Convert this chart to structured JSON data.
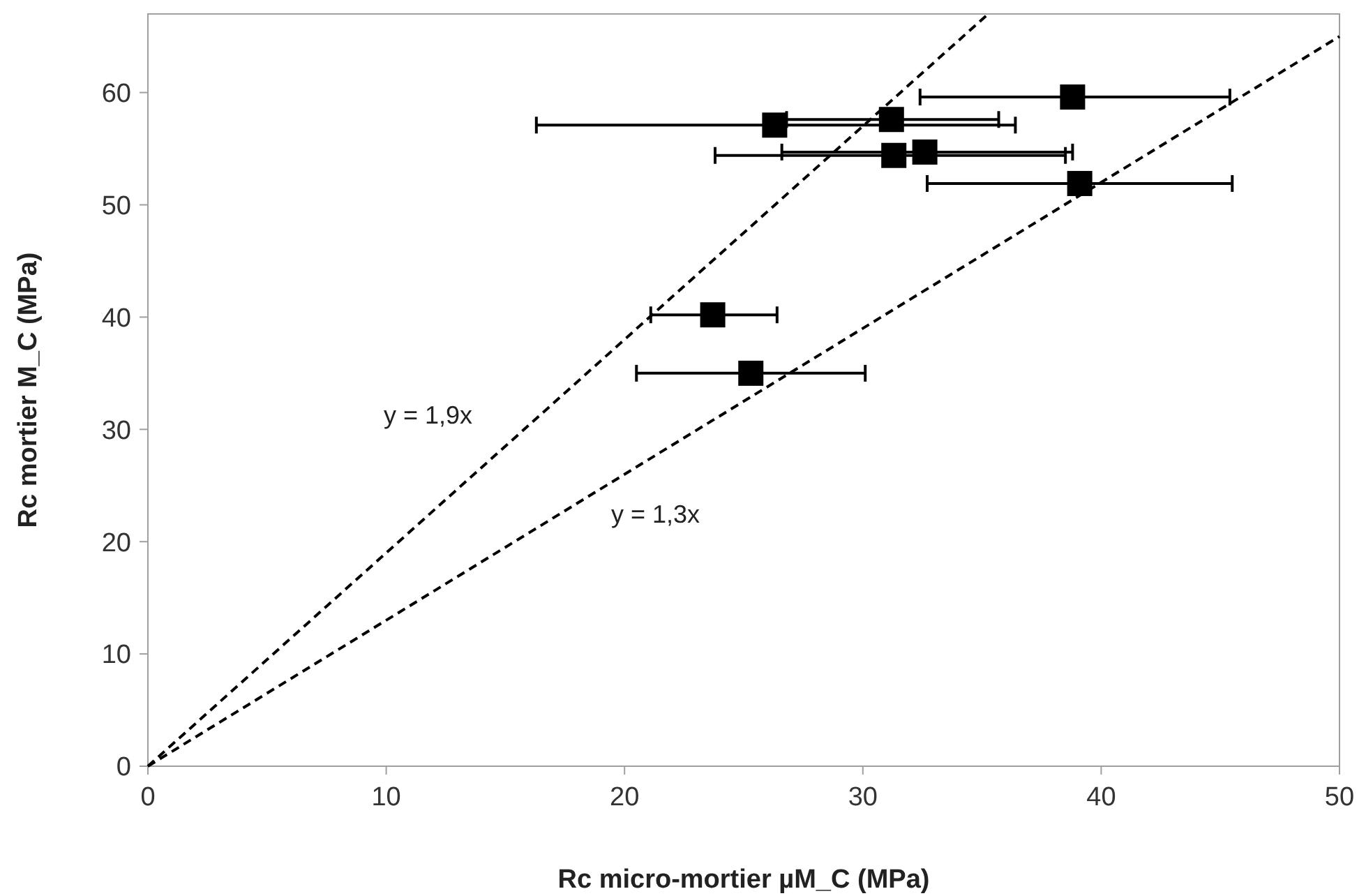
{
  "chart_data": {
    "type": "scatter",
    "xlabel": "Rc micro-mortier  µM_C (MPa)",
    "ylabel": "Rc mortier M_C (MPa)",
    "xlim": [
      0,
      50
    ],
    "ylim": [
      0,
      67
    ],
    "xticks": [
      0,
      10,
      20,
      30,
      40,
      50
    ],
    "yticks": [
      0,
      10,
      20,
      30,
      40,
      50,
      60
    ],
    "grid": false,
    "series": [
      {
        "color": "#000000",
        "marker": "square",
        "x": [
          38.8,
          26.3,
          31.2,
          31.3,
          32.6,
          39.1,
          23.7,
          25.3
        ],
        "values": [
          59.6,
          57.1,
          57.6,
          54.4,
          54.7,
          51.9,
          40.2,
          35.0
        ],
        "xerrors": [
          [
            32.4,
            45.4
          ],
          [
            16.3,
            36.4
          ],
          [
            26.8,
            35.7
          ],
          [
            23.8,
            38.5
          ],
          [
            26.6,
            38.8
          ],
          [
            32.7,
            45.5
          ],
          [
            21.1,
            26.4
          ],
          [
            20.5,
            30.1
          ]
        ]
      },
      {
        "type": "line",
        "color": "#000000",
        "marker": "none",
        "line_style": "dashed",
        "x": [
          0,
          35.26
        ],
        "values": [
          0,
          67
        ]
      },
      {
        "type": "line",
        "color": "#000000",
        "marker": "none",
        "line_style": "dashed",
        "x": [
          0,
          50
        ],
        "values": [
          0,
          65
        ]
      }
    ],
    "annotations": [
      "y = 1,9x",
      "y = 1,3x"
    ]
  }
}
